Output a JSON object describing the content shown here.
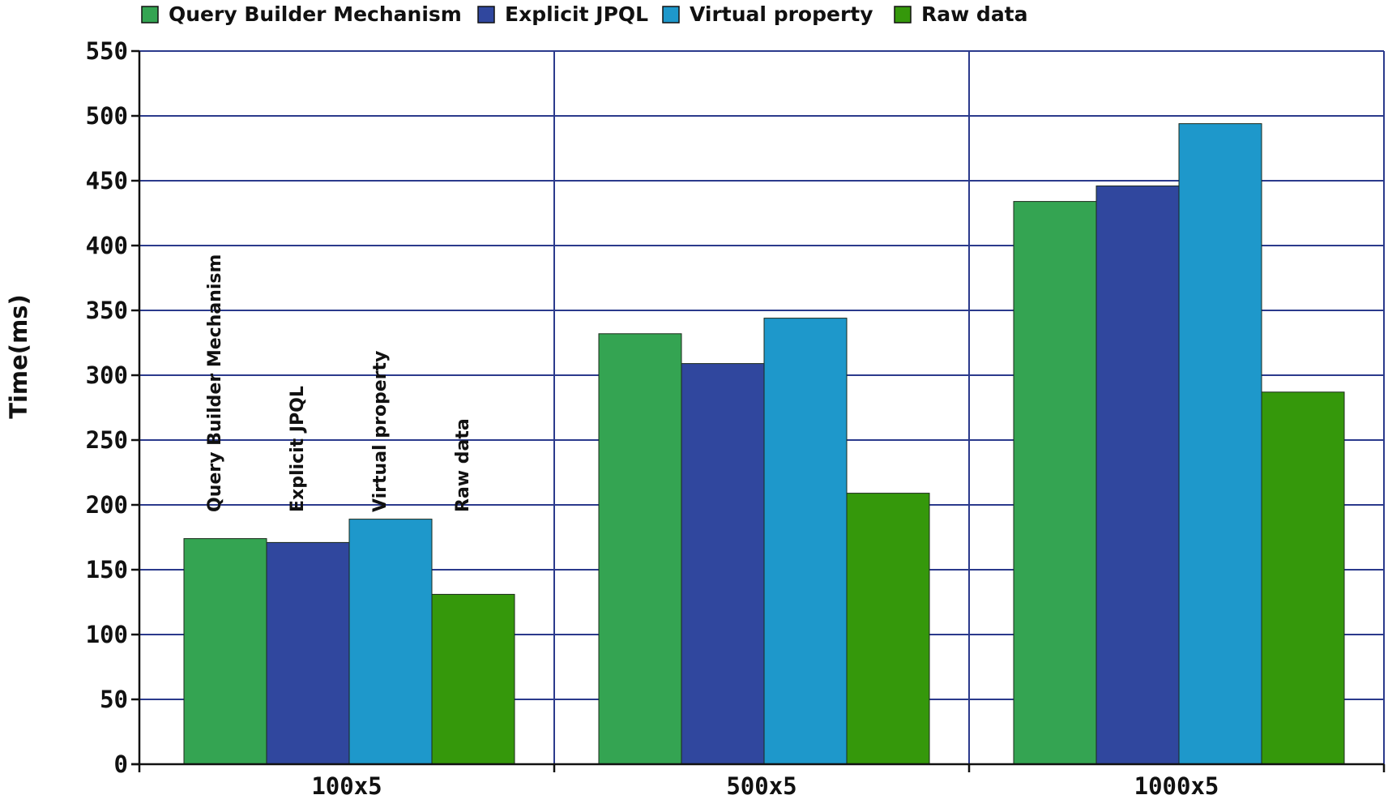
{
  "chart_data": {
    "type": "bar",
    "categories": [
      "100x5",
      "500x5",
      "1000x5"
    ],
    "series": [
      {
        "name": "Query Builder Mechanism",
        "color": "#34a452",
        "values": [
          174,
          332,
          434
        ]
      },
      {
        "name": "Explicit JPQL",
        "color": "#30479e",
        "values": [
          171,
          309,
          446
        ]
      },
      {
        "name": "Virtual property",
        "color": "#1e98cb",
        "values": [
          189,
          344,
          494
        ]
      },
      {
        "name": "Raw data",
        "color": "#35980b",
        "values": [
          131,
          209,
          287
        ]
      }
    ],
    "bar_labels": [
      "Query Builder Mechanism",
      "Explicit JPQL",
      "Virtual property",
      "Raw data"
    ],
    "title": "",
    "xlabel": "",
    "ylabel": "Time(ms)",
    "ylim": [
      0,
      550
    ],
    "yticks": [
      0,
      50,
      100,
      150,
      200,
      250,
      300,
      350,
      400,
      450,
      500,
      550
    ],
    "grid": true,
    "legend_position": "top",
    "grid_color": "#2b3a8c"
  }
}
